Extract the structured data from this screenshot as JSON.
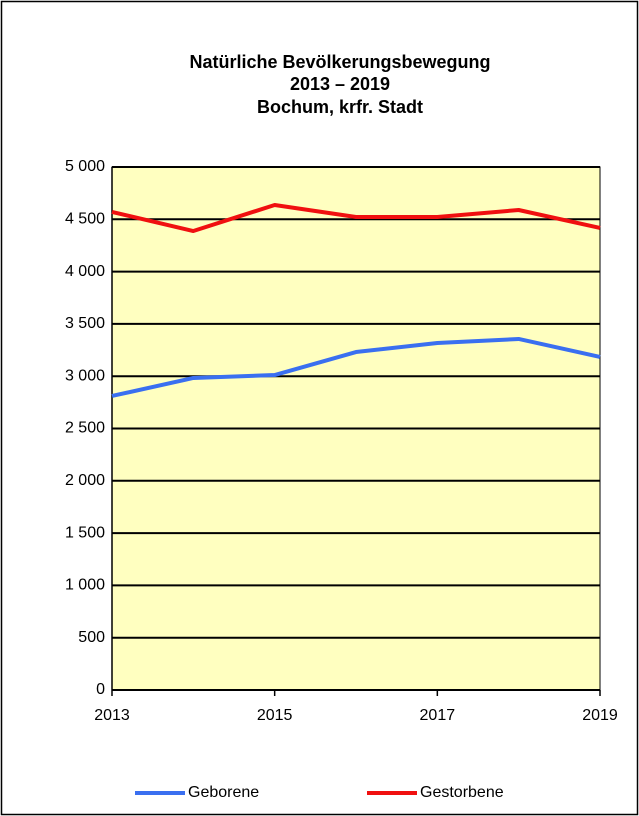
{
  "chart_data": {
    "type": "line",
    "title": [
      "Natürliche Bevölkerungsbewegung",
      "2013 – 2019",
      "Bochum, krfr. Stadt"
    ],
    "x": [
      2013,
      2014,
      2015,
      2016,
      2017,
      2018,
      2019
    ],
    "series": [
      {
        "name": "Geborene",
        "color": "#3a6ff0",
        "values": [
          2811,
          2983,
          3011,
          3231,
          3317,
          3356,
          3184
        ]
      },
      {
        "name": "Gestorbene",
        "color": "#f01010",
        "values": [
          4570,
          4388,
          4637,
          4522,
          4522,
          4589,
          4417
        ]
      }
    ],
    "xlim": [
      2013,
      2019
    ],
    "xticks": [
      2013,
      2015,
      2017,
      2019
    ],
    "ylim": [
      0,
      5000
    ],
    "yticks": [
      0,
      500,
      {
        "value": 1000,
        "label": "1 000"
      },
      {
        "value": 1500,
        "label": "1 500"
      },
      {
        "value": 2000,
        "label": "2 000"
      },
      {
        "value": 2500,
        "label": "2 500"
      },
      {
        "value": 3000,
        "label": "3 000"
      },
      {
        "value": 3500,
        "label": "3 500"
      },
      {
        "value": 4000,
        "label": "4 000"
      },
      {
        "value": 4500,
        "label": "4 500"
      },
      {
        "value": 5000,
        "label": "5 000"
      }
    ],
    "grid": true,
    "legend": "bottom",
    "background": "#ffffc0"
  }
}
